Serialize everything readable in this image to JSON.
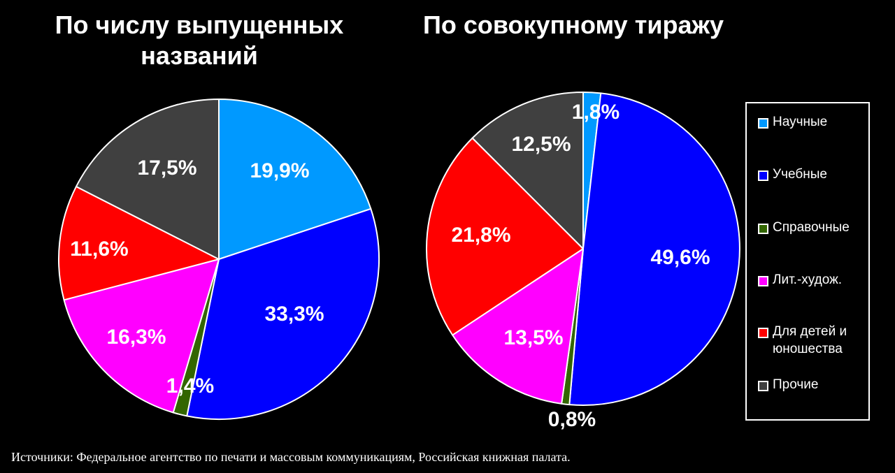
{
  "chart_data": [
    {
      "type": "pie",
      "title": "По числу выпущенных названий",
      "categories": [
        "Научные",
        "Учебные",
        "Справочные",
        "Лит.-худож.",
        "Для детей и юношества",
        "Прочие"
      ],
      "values": [
        19.9,
        33.3,
        1.4,
        16.3,
        11.6,
        17.5
      ],
      "labels": [
        "19,9%",
        "33,3%",
        "1,4%",
        "16,3%",
        "11,6%",
        "17,5%"
      ]
    },
    {
      "type": "pie",
      "title": "По совокупному тиражу",
      "categories": [
        "Научные",
        "Учебные",
        "Справочные",
        "Лит.-худож.",
        "Для детей и юношества",
        "Прочие"
      ],
      "values": [
        1.8,
        49.6,
        0.8,
        13.5,
        21.8,
        12.5
      ],
      "labels": [
        "1,8%",
        "49,6%",
        "0,8%",
        "13,5%",
        "21,8%",
        "12,5%"
      ]
    }
  ],
  "colors": [
    "#0099ff",
    "#0000ff",
    "#336600",
    "#ff00ff",
    "#ff0000",
    "#404040"
  ],
  "legend": {
    "placement": "right",
    "items": [
      {
        "label": "Научные"
      },
      {
        "label": "Учебные"
      },
      {
        "label": "Справочные"
      },
      {
        "label": "Лит.-худож."
      },
      {
        "label": "Для детей и юношества"
      },
      {
        "label": "Прочие"
      }
    ]
  },
  "source": "Источники: Федеральное агентство по печати и массовым коммуникациям, Российская книжная палата."
}
